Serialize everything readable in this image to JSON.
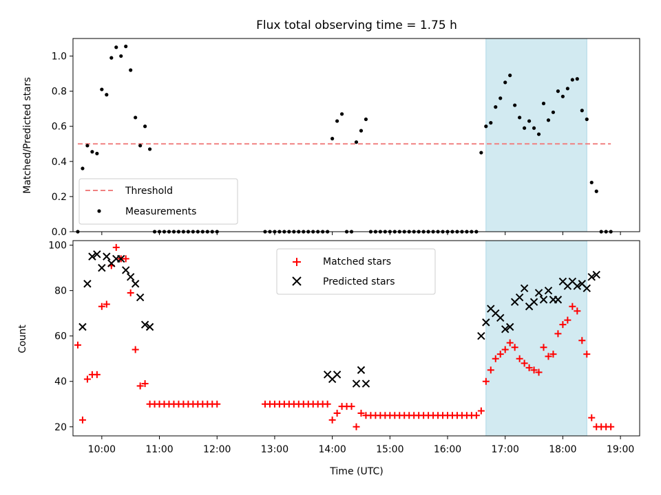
{
  "title": "Flux total observing time = 1.75 h",
  "colors": {
    "threshold": "#f08080",
    "measurement": "#000000",
    "matched": "#ff0000",
    "predicted": "#000000",
    "shade": "#add8e6"
  },
  "chart_data": [
    {
      "type": "scatter",
      "panel": "top",
      "ylabel": "Matched/Predicted stars",
      "xlim": [
        "09:30",
        "19:20"
      ],
      "ylim": [
        0,
        1.1
      ],
      "yticks": [
        "0.0",
        "0.2",
        "0.4",
        "0.6",
        "0.8",
        "1.0"
      ],
      "grid": false,
      "legend": "lower-left",
      "highlight_span": [
        "16:40",
        "18:25"
      ],
      "threshold": {
        "name": "Threshold",
        "value": 0.5,
        "x_range": [
          "09:35",
          "18:50"
        ]
      },
      "measurements": {
        "name": "Measurements",
        "x": [
          "09:35",
          "09:40",
          "09:45",
          "09:50",
          "09:55",
          "10:00",
          "10:05",
          "10:10",
          "10:15",
          "10:20",
          "10:25",
          "10:30",
          "10:35",
          "10:40",
          "10:45",
          "10:50",
          "10:55",
          "11:00",
          "11:05",
          "11:10",
          "11:15",
          "11:20",
          "11:25",
          "11:30",
          "11:35",
          "11:40",
          "11:45",
          "11:50",
          "11:55",
          "12:00",
          "12:50",
          "12:55",
          "13:00",
          "13:05",
          "13:10",
          "13:15",
          "13:20",
          "13:25",
          "13:30",
          "13:35",
          "13:40",
          "13:45",
          "13:50",
          "13:55",
          "14:00",
          "14:05",
          "14:10",
          "14:15",
          "14:20",
          "14:25",
          "14:30",
          "14:35",
          "14:40",
          "14:45",
          "14:50",
          "14:55",
          "15:00",
          "15:05",
          "15:10",
          "15:15",
          "15:20",
          "15:25",
          "15:30",
          "15:35",
          "15:40",
          "15:45",
          "15:50",
          "15:55",
          "16:00",
          "16:05",
          "16:10",
          "16:15",
          "16:20",
          "16:25",
          "16:30",
          "16:35",
          "16:40",
          "16:45",
          "16:50",
          "16:55",
          "17:00",
          "17:05",
          "17:10",
          "17:15",
          "17:20",
          "17:25",
          "17:30",
          "17:35",
          "17:40",
          "17:45",
          "17:50",
          "17:55",
          "18:00",
          "18:05",
          "18:10",
          "18:15",
          "18:20",
          "18:25",
          "18:30",
          "18:35",
          "18:40",
          "18:45",
          "18:50"
        ],
        "y": [
          0.0,
          0.36,
          0.49,
          0.455,
          0.445,
          0.81,
          0.78,
          0.99,
          1.05,
          1.0,
          1.055,
          0.92,
          0.65,
          0.49,
          0.6,
          0.47,
          0.0,
          0.0,
          0.0,
          0.0,
          0.0,
          0.0,
          0.0,
          0.0,
          0.0,
          0.0,
          0.0,
          0.0,
          0.0,
          0.0,
          0.0,
          0.0,
          0.0,
          0.0,
          0.0,
          0.0,
          0.0,
          0.0,
          0.0,
          0.0,
          0.0,
          0.0,
          0.0,
          0.0,
          0.53,
          0.63,
          0.67,
          0.0,
          0.0,
          0.51,
          0.575,
          0.64,
          0.0,
          0.0,
          0.0,
          0.0,
          0.0,
          0.0,
          0.0,
          0.0,
          0.0,
          0.0,
          0.0,
          0.0,
          0.0,
          0.0,
          0.0,
          0.0,
          0.0,
          0.0,
          0.0,
          0.0,
          0.0,
          0.0,
          0.0,
          0.45,
          0.6,
          0.62,
          0.71,
          0.76,
          0.85,
          0.89,
          0.72,
          0.65,
          0.59,
          0.63,
          0.59,
          0.555,
          0.73,
          0.635,
          0.68,
          0.8,
          0.77,
          0.815,
          0.865,
          0.87,
          0.69,
          0.64,
          0.28,
          0.23,
          0.0,
          0.0,
          0.0
        ]
      }
    },
    {
      "type": "scatter",
      "panel": "bottom",
      "ylabel": "Count",
      "xlabel": "Time (UTC)",
      "xlim": [
        "09:30",
        "19:20"
      ],
      "ylim": [
        16,
        102
      ],
      "yticks": [
        "20",
        "40",
        "60",
        "80",
        "100"
      ],
      "xticks": [
        "10:00",
        "11:00",
        "12:00",
        "13:00",
        "14:00",
        "15:00",
        "16:00",
        "17:00",
        "18:00",
        "19:00"
      ],
      "grid": false,
      "legend": "top-center",
      "highlight_span": [
        "16:40",
        "18:25"
      ],
      "series": [
        {
          "name": "Matched stars",
          "marker": "plus",
          "x": [
            "09:35",
            "09:40",
            "09:45",
            "09:50",
            "09:55",
            "10:00",
            "10:05",
            "10:10",
            "10:15",
            "10:20",
            "10:25",
            "10:30",
            "10:35",
            "10:40",
            "10:45",
            "10:50",
            "10:55",
            "11:00",
            "11:05",
            "11:10",
            "11:15",
            "11:20",
            "11:25",
            "11:30",
            "11:35",
            "11:40",
            "11:45",
            "11:50",
            "11:55",
            "12:00",
            "12:50",
            "12:55",
            "13:00",
            "13:05",
            "13:10",
            "13:15",
            "13:20",
            "13:25",
            "13:30",
            "13:35",
            "13:40",
            "13:45",
            "13:50",
            "13:55",
            "14:00",
            "14:05",
            "14:10",
            "14:15",
            "14:20",
            "14:25",
            "14:30",
            "14:35",
            "14:40",
            "14:45",
            "14:50",
            "14:55",
            "15:00",
            "15:05",
            "15:10",
            "15:15",
            "15:20",
            "15:25",
            "15:30",
            "15:35",
            "15:40",
            "15:45",
            "15:50",
            "15:55",
            "16:00",
            "16:05",
            "16:10",
            "16:15",
            "16:20",
            "16:25",
            "16:30",
            "16:35",
            "16:40",
            "16:45",
            "16:50",
            "16:55",
            "17:00",
            "17:05",
            "17:10",
            "17:15",
            "17:20",
            "17:25",
            "17:30",
            "17:35",
            "17:40",
            "17:45",
            "17:50",
            "17:55",
            "18:00",
            "18:05",
            "18:10",
            "18:15",
            "18:20",
            "18:25",
            "18:30",
            "18:35",
            "18:40",
            "18:45",
            "18:50"
          ],
          "y": [
            56,
            23,
            41,
            43,
            43,
            73,
            74,
            91,
            99,
            94,
            94,
            79,
            54,
            38,
            39,
            30,
            30,
            30,
            30,
            30,
            30,
            30,
            30,
            30,
            30,
            30,
            30,
            30,
            30,
            30,
            30,
            30,
            30,
            30,
            30,
            30,
            30,
            30,
            30,
            30,
            30,
            30,
            30,
            30,
            23,
            26,
            29,
            29,
            29,
            20,
            26,
            25,
            25,
            25,
            25,
            25,
            25,
            25,
            25,
            25,
            25,
            25,
            25,
            25,
            25,
            25,
            25,
            25,
            25,
            25,
            25,
            25,
            25,
            25,
            25,
            27,
            40,
            45,
            50,
            52,
            54,
            57,
            55,
            50,
            48,
            46,
            45,
            44,
            55,
            51,
            52,
            61,
            65,
            67,
            73,
            71,
            58,
            52,
            24,
            20,
            20,
            20,
            20
          ]
        },
        {
          "name": "Predicted stars",
          "marker": "x",
          "x": [
            "09:40",
            "09:45",
            "09:50",
            "09:55",
            "10:00",
            "10:05",
            "10:10",
            "10:15",
            "10:20",
            "10:25",
            "10:30",
            "10:35",
            "10:40",
            "10:45",
            "10:50",
            "13:55",
            "14:00",
            "14:05",
            "14:25",
            "14:30",
            "14:35",
            "16:35",
            "16:40",
            "16:45",
            "16:50",
            "16:55",
            "17:00",
            "17:05",
            "17:10",
            "17:15",
            "17:20",
            "17:25",
            "17:30",
            "17:35",
            "17:40",
            "17:45",
            "17:50",
            "17:55",
            "18:00",
            "18:05",
            "18:10",
            "18:15",
            "18:20",
            "18:25",
            "18:30",
            "18:35"
          ],
          "y": [
            64,
            83,
            95,
            96,
            90,
            95,
            92,
            94,
            94,
            89,
            86,
            83,
            77,
            65,
            64,
            43,
            41,
            43,
            39,
            45,
            39,
            60,
            66,
            72,
            70,
            68,
            63,
            64,
            75,
            77,
            81,
            73,
            75,
            79,
            76,
            80,
            76,
            76,
            84,
            82,
            84,
            82,
            83,
            81,
            86,
            87
          ]
        }
      ]
    }
  ]
}
